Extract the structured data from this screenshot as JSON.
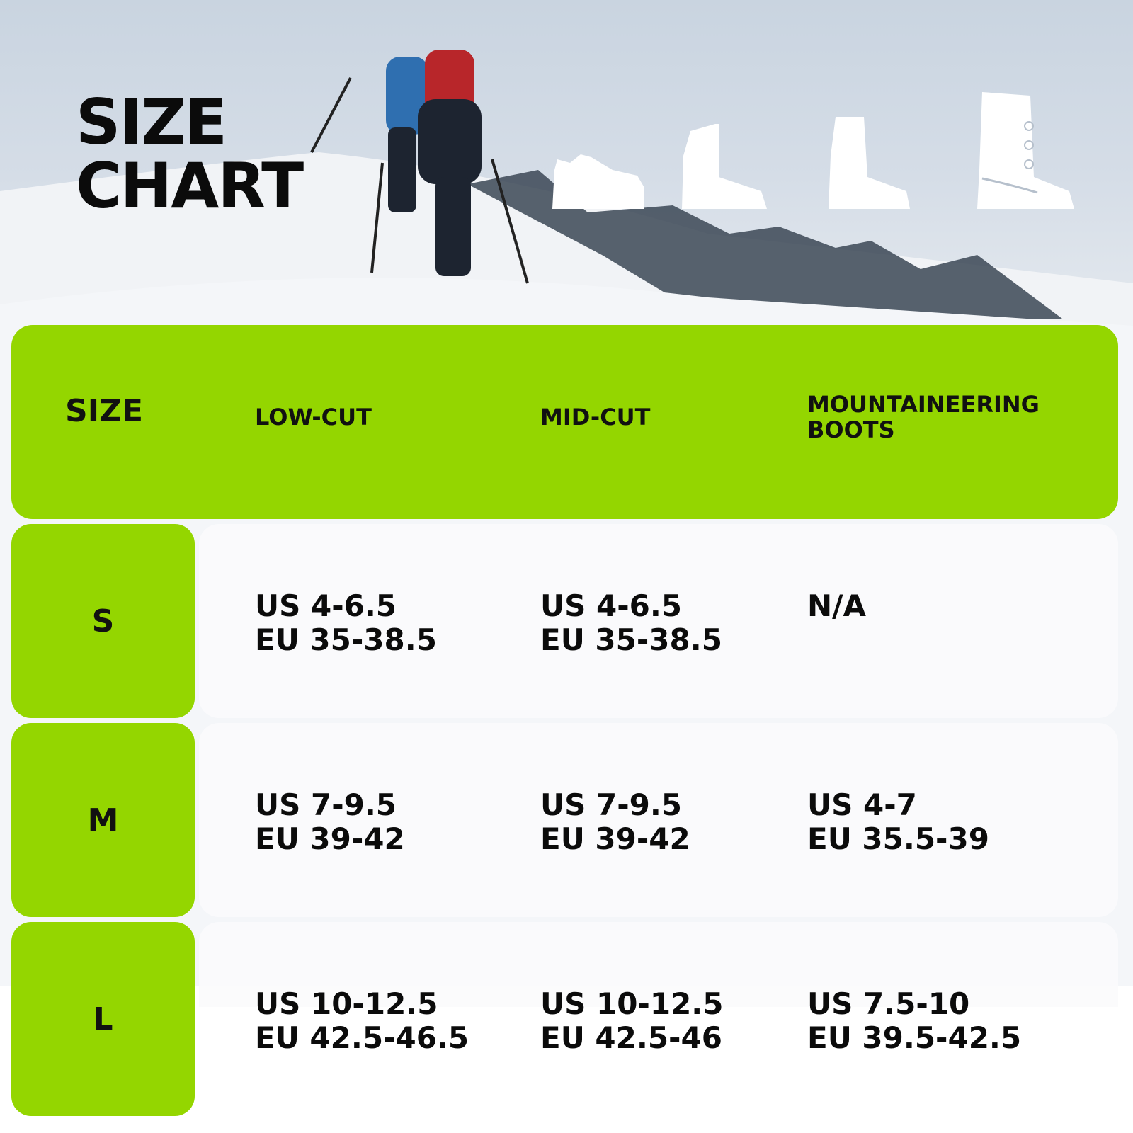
{
  "title": {
    "line1": "SIZE",
    "line2": "CHART"
  },
  "icons": [
    "low-cut-shoe-icon",
    "mid-cut-boot-icon",
    "high-boot-icon",
    "mountaineering-boot-icon"
  ],
  "colors": {
    "accent": "#94d600",
    "text": "#0b0b0b"
  },
  "table": {
    "headers": [
      "SIZE",
      "LOW-CUT",
      "MID-CUT",
      "MOUNTAINEERING BOOTS"
    ],
    "rows": [
      {
        "size": "S",
        "low_cut": [
          "US 4-6.5",
          "EU 35-38.5"
        ],
        "mid_cut": [
          "US 4-6.5",
          "EU 35-38.5"
        ],
        "mountaineering": [
          "N/A",
          ""
        ]
      },
      {
        "size": "M",
        "low_cut": [
          "US 7-9.5",
          "EU 39-42"
        ],
        "mid_cut": [
          "US 7-9.5",
          "EU 39-42"
        ],
        "mountaineering": [
          "US 4-7",
          "EU 35.5-39"
        ]
      },
      {
        "size": "L",
        "low_cut": [
          "US 10-12.5",
          "EU 42.5-46.5"
        ],
        "mid_cut": [
          "US 10-12.5",
          "EU 42.5-46"
        ],
        "mountaineering": [
          "US 7.5-10",
          "EU 39.5-42.5"
        ]
      }
    ]
  }
}
